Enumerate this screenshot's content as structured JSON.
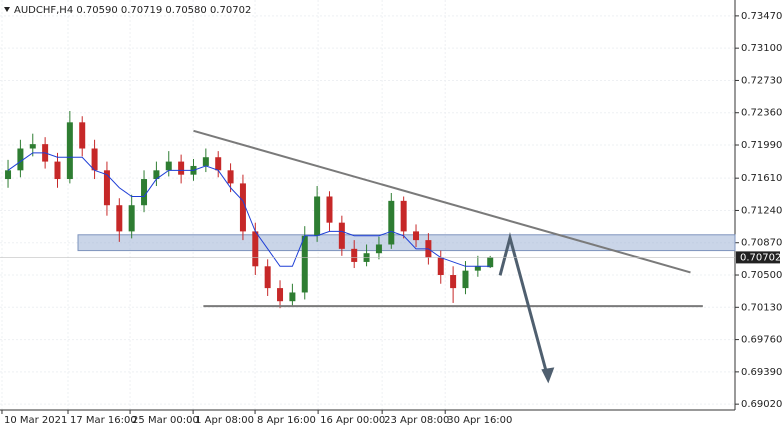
{
  "chart_data": {
    "type": "candlestick",
    "title": "AUDCHF,H4  0.70590 0.70719 0.70580 0.70702",
    "open": [
      0.716,
      0.717,
      0.7195,
      0.72,
      0.718,
      0.716,
      0.7225,
      0.7195,
      0.717,
      0.713,
      0.71,
      0.713,
      0.716,
      0.717,
      0.718,
      0.7165,
      0.7175,
      0.7185,
      0.717,
      0.7155,
      0.71,
      0.706,
      0.7035,
      0.702,
      0.703,
      0.7095,
      0.714,
      0.711,
      0.708,
      0.7065,
      0.7075,
      0.7085,
      0.7135,
      0.71,
      0.709,
      0.707,
      0.705,
      0.7035,
      0.7055,
      0.7059
    ],
    "high": [
      0.7182,
      0.7205,
      0.7212,
      0.7208,
      0.719,
      0.7238,
      0.7232,
      0.7205,
      0.718,
      0.7138,
      0.7142,
      0.717,
      0.718,
      0.7192,
      0.7188,
      0.7183,
      0.7195,
      0.7192,
      0.7178,
      0.7165,
      0.711,
      0.7068,
      0.7044,
      0.704,
      0.7106,
      0.7152,
      0.7146,
      0.7118,
      0.709,
      0.7085,
      0.7094,
      0.7144,
      0.714,
      0.7108,
      0.7098,
      0.7078,
      0.706,
      0.7066,
      0.7072,
      0.70719
    ],
    "low": [
      0.715,
      0.7162,
      0.7186,
      0.7172,
      0.715,
      0.7155,
      0.7186,
      0.716,
      0.7118,
      0.7088,
      0.7092,
      0.7122,
      0.7152,
      0.7163,
      0.7155,
      0.7158,
      0.7168,
      0.7162,
      0.7145,
      0.709,
      0.705,
      0.7026,
      0.7012,
      0.7014,
      0.7022,
      0.7088,
      0.71,
      0.7072,
      0.7058,
      0.706,
      0.7068,
      0.708,
      0.7092,
      0.7082,
      0.7062,
      0.704,
      0.7018,
      0.7028,
      0.7048,
      0.7058
    ],
    "close": [
      0.717,
      0.7195,
      0.72,
      0.718,
      0.716,
      0.7225,
      0.7195,
      0.717,
      0.713,
      0.71,
      0.713,
      0.716,
      0.717,
      0.718,
      0.7165,
      0.7175,
      0.7185,
      0.717,
      0.7155,
      0.71,
      0.706,
      0.7035,
      0.702,
      0.703,
      0.7095,
      0.714,
      0.711,
      0.708,
      0.7065,
      0.7075,
      0.7085,
      0.7135,
      0.71,
      0.709,
      0.707,
      0.705,
      0.7035,
      0.7055,
      0.706,
      0.70702
    ],
    "up_color": "#2e7d32",
    "down_color": "#c62828",
    "series": [
      {
        "color": "#1f3fd6",
        "values": [
          0.717,
          0.718,
          0.719,
          0.719,
          0.7185,
          0.7185,
          0.7185,
          0.717,
          0.7165,
          0.715,
          0.714,
          0.714,
          0.716,
          0.717,
          0.717,
          0.717,
          0.7175,
          0.717,
          0.715,
          0.7135,
          0.71,
          0.708,
          0.706,
          0.706,
          0.7095,
          0.7095,
          0.71,
          0.71,
          0.7095,
          0.7095,
          0.7095,
          0.71,
          0.7095,
          0.708,
          0.708,
          0.707,
          0.7065,
          0.706,
          0.706,
          0.706
        ]
      }
    ],
    "xlim": [
      -0.65,
      58.8
    ],
    "xticks": [
      {
        "value": -0.49,
        "label": "10 Mar 2021"
      },
      {
        "value": 4.85,
        "label": "17 Mar 16:00"
      },
      {
        "value": 9.87,
        "label": "25 Mar 00:00"
      },
      {
        "value": 14.97,
        "label": "1 Apr 08:00"
      },
      {
        "value": 19.98,
        "label": "8 Apr 16:00"
      },
      {
        "value": 25.08,
        "label": "16 Apr 00:00"
      },
      {
        "value": 30.26,
        "label": "23 Apr 08:00"
      },
      {
        "value": 35.36,
        "label": "30 Apr 16:00"
      }
    ],
    "ylim": [
      0.68953,
      0.73652
    ],
    "yticks": [
      {
        "value": 0.7347,
        "label": "0.73470"
      },
      {
        "value": 0.731,
        "label": "0.73100"
      },
      {
        "value": 0.7273,
        "label": "0.72730"
      },
      {
        "value": 0.7236,
        "label": "0.72360"
      },
      {
        "value": 0.7199,
        "label": "0.71990"
      },
      {
        "value": 0.7161,
        "label": "0.71610"
      },
      {
        "value": 0.7124,
        "label": "0.71240"
      },
      {
        "value": 0.7087,
        "label": "0.70870"
      },
      {
        "value": 0.705,
        "label": "0.70500"
      },
      {
        "value": 0.7013,
        "label": "0.70130"
      },
      {
        "value": 0.6976,
        "label": "0.69760"
      },
      {
        "value": 0.6939,
        "label": "0.69390"
      },
      {
        "value": 0.6902,
        "label": "0.69020"
      }
    ],
    "grid": true,
    "last_price": {
      "value": 0.70702,
      "label": "0.70702"
    },
    "zone": {
      "x": [
        5.66,
        58.8
      ],
      "y": [
        0.7078,
        0.70961
      ],
      "color": "#9fb3d6"
    },
    "trendlines": [
      {
        "x": [
          15.0,
          55.2
        ],
        "y": [
          0.72153,
          0.7053
        ],
        "color": "#7a7a7a"
      },
      {
        "x": [
          15.8,
          56.2
        ],
        "y": [
          0.70144,
          0.70144
        ],
        "color": "#7a7a7a"
      }
    ],
    "arrow": {
      "x": [
        39.8,
        40.6,
        43.7
      ],
      "y": [
        0.70496,
        0.70927,
        0.69304
      ],
      "color": "#4f5f6f"
    }
  }
}
